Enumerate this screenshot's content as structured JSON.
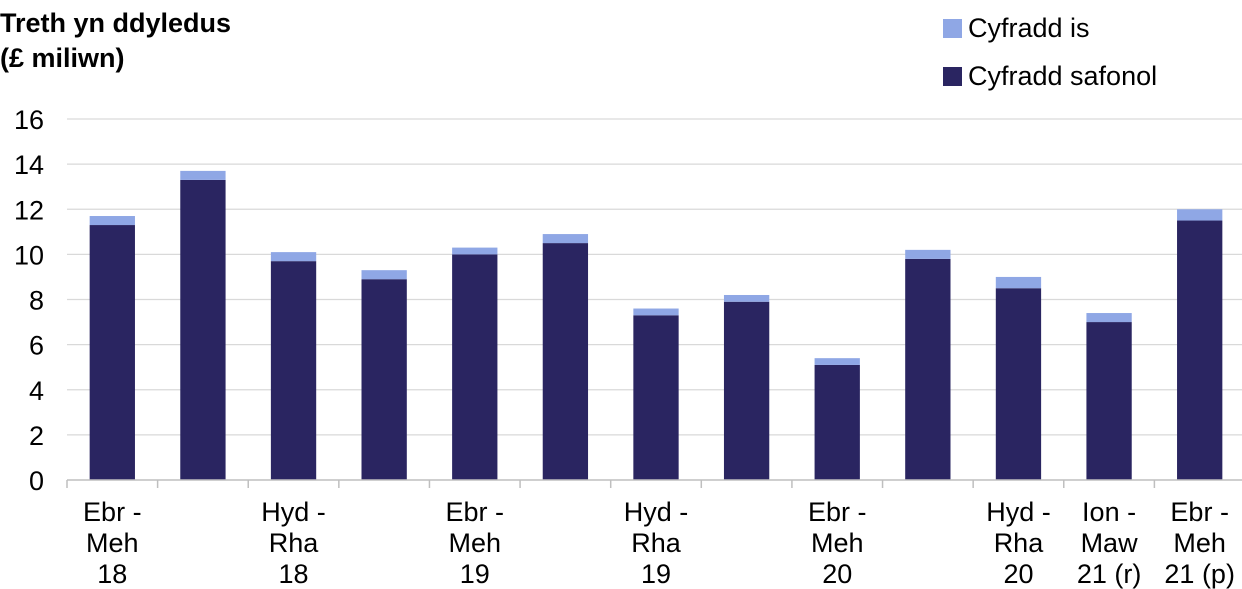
{
  "chart_data": {
    "type": "bar",
    "stacked": true,
    "ylabel_lines": [
      "Treth yn ddyledus",
      "(£ miliwn)"
    ],
    "ylim": [
      0,
      16
    ],
    "yticks": [
      0,
      2,
      4,
      6,
      8,
      10,
      12,
      14,
      16
    ],
    "grid": true,
    "legend_position": "top-right",
    "categories": [
      [
        "Ebr -",
        "Meh",
        "18"
      ],
      [
        "",
        "",
        ""
      ],
      [
        "Hyd -",
        "Rha",
        "18"
      ],
      [
        "",
        "",
        ""
      ],
      [
        "Ebr -",
        "Meh",
        "19"
      ],
      [
        "",
        "",
        ""
      ],
      [
        "Hyd -",
        "Rha",
        "19"
      ],
      [
        "",
        "",
        ""
      ],
      [
        "Ebr -",
        "Meh",
        "20"
      ],
      [
        "",
        "",
        ""
      ],
      [
        "Hyd -",
        "Rha",
        "20"
      ],
      [
        "Ion -",
        "Maw",
        "21 (r)"
      ],
      [
        "Ebr -",
        "Meh",
        "21 (p)"
      ]
    ],
    "series": [
      {
        "name": "Cyfradd safonol",
        "color": "#2a2561",
        "values": [
          11.3,
          13.3,
          9.7,
          8.9,
          10.0,
          10.5,
          7.3,
          7.9,
          5.1,
          9.8,
          8.5,
          7.0,
          11.5
        ]
      },
      {
        "name": "Cyfradd is",
        "color": "#8fa7e5",
        "values": [
          0.4,
          0.4,
          0.4,
          0.4,
          0.3,
          0.4,
          0.3,
          0.3,
          0.3,
          0.4,
          0.5,
          0.4,
          0.5
        ]
      }
    ],
    "legend_order": [
      1,
      0
    ]
  }
}
